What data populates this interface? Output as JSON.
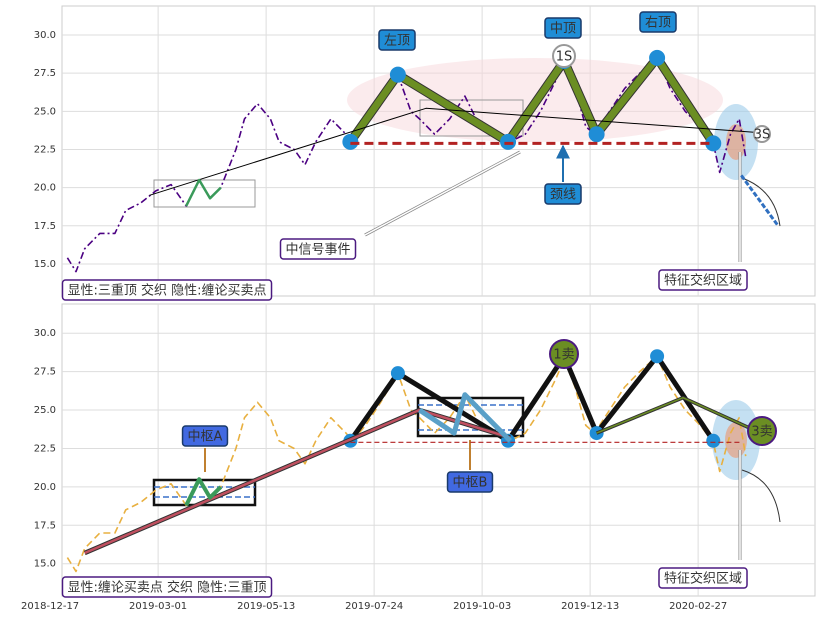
{
  "chart_data": [
    {
      "type": "line",
      "xlim": [
        5.5,
        354.1
      ],
      "ylim": [
        12.9,
        31.9
      ],
      "xticks": [
        0,
        50,
        100,
        150,
        200,
        250,
        300
      ],
      "yticks": [
        {
          "value": 15,
          "label": "15.0"
        },
        {
          "value": 17.5,
          "label": "17.5"
        },
        {
          "value": 20,
          "label": "20.0"
        },
        {
          "value": 22.5,
          "label": "22.5"
        },
        {
          "value": 25,
          "label": "25.0"
        },
        {
          "value": 27.5,
          "label": "27.5"
        },
        {
          "value": 30,
          "label": "30.0"
        }
      ],
      "grid": true,
      "series": [
        {
          "color": "#4b0082",
          "x": [
            8,
            12,
            16,
            23,
            30,
            35,
            42,
            49,
            56,
            63,
            69,
            74,
            79,
            86,
            90,
            96,
            102,
            106,
            113,
            118,
            123,
            130,
            137,
            140,
            146,
            153,
            161,
            167,
            171,
            178,
            185,
            192,
            199,
            206,
            213,
            220,
            227,
            234,
            238,
            243,
            248,
            252,
            259,
            266,
            273,
            281,
            287,
            294,
            301,
            307,
            310,
            315,
            319,
            322
          ],
          "values": [
            15.4,
            14.5,
            16,
            17,
            17,
            18.5,
            19,
            19.8,
            20.2,
            18.8,
            20.5,
            19.3,
            20,
            22.5,
            24.5,
            25.5,
            24.5,
            23,
            22.5,
            21.5,
            23,
            24.5,
            23.5,
            23,
            24,
            25.5,
            27.4,
            25,
            24.5,
            23.5,
            24.5,
            26,
            24,
            23.5,
            23,
            23.5,
            25,
            27,
            28.3,
            26.5,
            24,
            23.5,
            25,
            26.5,
            27.5,
            28.5,
            26.5,
            25,
            24,
            22.9,
            21,
            23.5,
            24.5,
            22
          ]
        },
        {
          "color": "#6b8e23",
          "x": [
            139,
            161,
            212,
            238,
            253,
            281,
            307
          ],
          "values": [
            23,
            27.4,
            23,
            28.3,
            23.5,
            28.5,
            22.9
          ]
        },
        {
          "color": "#000000",
          "x": [
            46,
            174,
            329
          ],
          "values": [
            19.5,
            25.2,
            23.6
          ]
        },
        {
          "color": "#3a9a5a",
          "x": [
            63,
            69,
            74,
            79
          ],
          "values": [
            18.8,
            20.5,
            19.3,
            20
          ]
        },
        {
          "color": "#b22222",
          "x": [
            139,
            307
          ],
          "values": [
            22.9,
            22.9
          ]
        },
        {
          "color": "#3070c0",
          "x": [
            320,
            337
          ],
          "values": [
            20.8,
            17.5
          ]
        }
      ],
      "annotations": [
        "左顶",
        "中顶",
        "右顶",
        "颈线",
        "中信号事件",
        "特征交织区域",
        "显性:三重顶 交织 隐性:缠论买卖点",
        "1S",
        "3S"
      ]
    },
    {
      "type": "line",
      "xlim": [
        5.5,
        354.1
      ],
      "ylim": [
        12.9,
        31.9
      ],
      "xticks": [
        {
          "value": 0,
          "label": "2018-12-17"
        },
        {
          "value": 50,
          "label": "2019-03-01"
        },
        {
          "value": 100,
          "label": "2019-05-13"
        },
        {
          "value": 150,
          "label": "2019-07-24"
        },
        {
          "value": 200,
          "label": "2019-10-03"
        },
        {
          "value": 250,
          "label": "2019-12-13"
        },
        {
          "value": 300,
          "label": "2020-02-27"
        }
      ],
      "yticks": [
        {
          "value": 15,
          "label": "15.0"
        },
        {
          "value": 17.5,
          "label": "17.5"
        },
        {
          "value": 20,
          "label": "20.0"
        },
        {
          "value": 22.5,
          "label": "22.5"
        },
        {
          "value": 25,
          "label": "25.0"
        },
        {
          "value": 27.5,
          "label": "27.5"
        },
        {
          "value": 30,
          "label": "30.0"
        }
      ],
      "grid": true,
      "series": [
        {
          "color": "#e8b040",
          "x": [
            8,
            12,
            16,
            23,
            30,
            35,
            42,
            49,
            56,
            63,
            69,
            74,
            79,
            86,
            90,
            96,
            102,
            106,
            113,
            118,
            123,
            130,
            137,
            140,
            146,
            153,
            161,
            167,
            171,
            178,
            185,
            192,
            199,
            206,
            213,
            220,
            227,
            234,
            238,
            243,
            248,
            252,
            259,
            266,
            273,
            281,
            287,
            294,
            301,
            307,
            310,
            315,
            319,
            322
          ],
          "values": [
            15.4,
            14.5,
            16,
            17,
            17,
            18.5,
            19,
            19.8,
            20.2,
            18.8,
            20.5,
            19.3,
            20,
            22.5,
            24.5,
            25.5,
            24.5,
            23,
            22.5,
            21.5,
            23,
            24.5,
            23.5,
            23,
            24,
            25.5,
            27.4,
            25,
            24.5,
            23.5,
            24.5,
            26,
            24,
            23.5,
            23,
            23.5,
            25,
            27,
            28.3,
            26.5,
            24,
            23.5,
            25,
            26.5,
            27.5,
            28.5,
            26.5,
            25,
            24,
            22.9,
            21,
            23.5,
            24.5,
            22
          ]
        },
        {
          "color": "#111111",
          "x": [
            139,
            161,
            212,
            238,
            253,
            281,
            307
          ],
          "values": [
            23,
            27.4,
            23,
            28.5,
            23.5,
            28.5,
            23
          ]
        },
        {
          "color": "#c05060",
          "x": [
            16,
            171,
            213
          ],
          "values": [
            15.7,
            25,
            23.2
          ]
        },
        {
          "color": "#6b8e23",
          "x": [
            253,
            293,
            329
          ],
          "values": [
            23.5,
            25.8,
            23.5
          ]
        },
        {
          "color": "#3a9a5a",
          "x": [
            63,
            69,
            74,
            79
          ],
          "values": [
            18.8,
            20.5,
            19.3,
            20
          ]
        },
        {
          "color": "#5aa0c8",
          "x": [
            171,
            187,
            192,
            213
          ],
          "values": [
            25,
            23.5,
            26,
            23
          ]
        },
        {
          "color": "#b22222",
          "x": [
            139,
            320
          ],
          "values": [
            22.9,
            22.9
          ]
        }
      ],
      "annotations": [
        "中枢A",
        "中枢B",
        "1卖",
        "3卖",
        "特征交织区域",
        "显性:缠论买卖点 交织 隐性:三重顶"
      ]
    }
  ]
}
